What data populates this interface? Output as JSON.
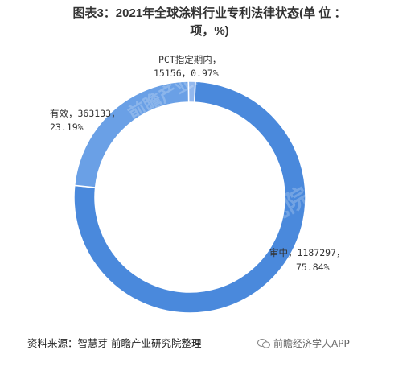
{
  "title": {
    "line1": "图表3：2021年全球涂料行业专利法律状态(单 位 ：",
    "line2": "项，%)"
  },
  "chart_data": {
    "type": "pie",
    "style": "donut",
    "slices": [
      {
        "label": "审中",
        "value": 1187297,
        "percent": 75.84,
        "label_line1": "审中，1187297，",
        "label_line2": "75.84%",
        "color": "#4a89dc"
      },
      {
        "label": "有效",
        "value": 363133,
        "percent": 23.19,
        "label_line1": "有效，363133，",
        "label_line2": "23.19%",
        "color": "#6aa0e6"
      },
      {
        "label": "PCT指定期内",
        "value": 15156,
        "percent": 0.97,
        "label_line1": "PCT指定期内，",
        "label_line2": "15156，0.97%",
        "color": "#93b8ee"
      }
    ]
  },
  "watermark": {
    "text": "前瞻产业研究院"
  },
  "footer": {
    "source": "资料来源：智慧芽 前瞻产业研究院整理",
    "brand": "前瞻经济学人APP"
  }
}
